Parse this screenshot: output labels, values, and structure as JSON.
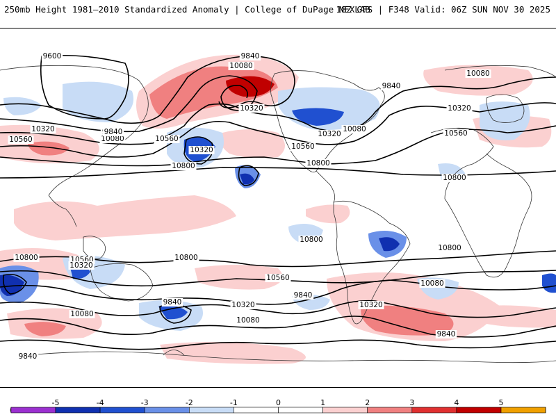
{
  "header": {
    "title_left": "250mb Height 1981–2010 Standardized Anomaly | College of DuPage NEXLAB",
    "title_right": "18Z GFS | F348 Valid: 06Z SUN NOV 30 2025"
  },
  "contour_labels": [
    "9600",
    "9840",
    "10080",
    "10080",
    "9840",
    "10320",
    "9840",
    "10080",
    "10320",
    "10320",
    "9840",
    "10080",
    "10560",
    "10560",
    "10320",
    "10560",
    "10320",
    "10080",
    "10560",
    "10800",
    "10800",
    "10800",
    "10800",
    "10800",
    "10800",
    "10560",
    "10320",
    "10800",
    "10560",
    "10080",
    "10320",
    "9840",
    "9840",
    "10080",
    "10320",
    "10080",
    "9840",
    "9840"
  ],
  "colorbar": {
    "ticks": [
      "-5",
      "-4",
      "-3",
      "-2",
      "-1",
      "0",
      "1",
      "2",
      "3",
      "4",
      "5"
    ],
    "colors": [
      "#9b30d0",
      "#1030b0",
      "#2050d0",
      "#6a90e8",
      "#c8dcf6",
      "#ffffff",
      "#ffffff",
      "#fbd0d0",
      "#f08080",
      "#e03030",
      "#c00000",
      "#f0a000"
    ],
    "left_tip_color": "#e060e0",
    "right_tip_color": "#f8c000"
  }
}
